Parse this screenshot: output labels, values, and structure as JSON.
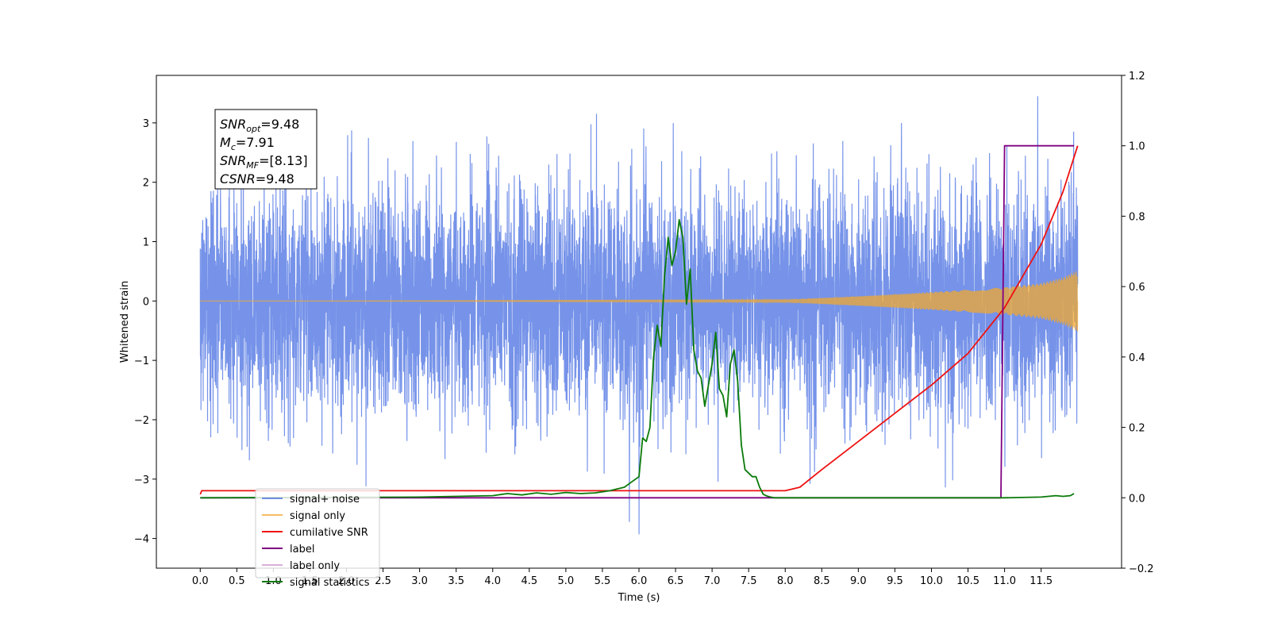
{
  "chart_data": {
    "type": "line",
    "xlabel": "Time (s)",
    "ylabel": "Whitened strain",
    "xlim": [
      -0.6,
      12.6
    ],
    "ylim": [
      -4.5,
      3.8
    ],
    "y2lim": [
      -0.2,
      1.2
    ],
    "xticks": [
      0.0,
      0.5,
      1.0,
      1.5,
      2.0,
      2.5,
      3.0,
      3.5,
      4.0,
      4.5,
      5.0,
      5.5,
      6.0,
      6.5,
      7.0,
      7.5,
      8.0,
      8.5,
      9.0,
      9.5,
      10.0,
      10.5,
      11.0,
      11.5
    ],
    "xtick_labels": [
      "0.0",
      "0.5",
      "1.0",
      "1.5",
      "2.0",
      "2.5",
      "3.0",
      "3.5",
      "4.0",
      "4.5",
      "5.0",
      "5.5",
      "6.0",
      "6.5",
      "7.0",
      "7.5",
      "8.0",
      "8.5",
      "9.0",
      "9.5",
      "10.0",
      "10.5",
      "11.0",
      "11.5"
    ],
    "yticks": [
      -4,
      -3,
      -2,
      -1,
      0,
      1,
      2,
      3
    ],
    "ytick_labels": [
      "−4",
      "−3",
      "−2",
      "−1",
      "0",
      "1",
      "2",
      "3"
    ],
    "y2ticks": [
      -0.2,
      0.0,
      0.2,
      0.4,
      0.6,
      0.8,
      1.0,
      1.2
    ],
    "y2tick_labels": [
      "−0.2",
      "0.0",
      "0.2",
      "0.4",
      "0.6",
      "0.8",
      "1.0",
      "1.2"
    ],
    "grid": false,
    "legend_position": "lower-left",
    "annotation": {
      "lines": [
        {
          "main": "SNR",
          "sub": "opt",
          "rest": "=9.48"
        },
        {
          "main": "M",
          "sub": "c",
          "rest": "=7.91"
        },
        {
          "main": "SNR",
          "sub": "MF",
          "rest": "=[8.13]"
        },
        {
          "main": "CSNR",
          "sub": "",
          "rest": "=9.48"
        }
      ]
    },
    "series": [
      {
        "name": "signal+ noise",
        "axis": "left",
        "color": "#4169e1",
        "kind": "noise",
        "x_range": [
          0.0,
          12.0
        ],
        "sigma": 1.0,
        "peak_max": 3.45,
        "peak_min": -4.1
      },
      {
        "name": "signal only",
        "axis": "left",
        "color": "#f0a830",
        "kind": "chirp",
        "x_range": [
          0.0,
          12.0
        ],
        "envelope_x": [
          0.0,
          8.0,
          9.0,
          10.0,
          10.5,
          11.0,
          11.5,
          11.8,
          12.0
        ],
        "envelope_y": [
          0.0,
          0.02,
          0.08,
          0.15,
          0.19,
          0.23,
          0.3,
          0.4,
          0.52
        ]
      },
      {
        "name": "cumilative SNR",
        "axis": "right",
        "color": "#ee1111",
        "x": [
          0.0,
          0.02,
          8.0,
          8.2,
          8.5,
          9.0,
          9.5,
          10.0,
          10.5,
          11.0,
          11.5,
          11.8,
          12.0
        ],
        "y": [
          0.01,
          0.02,
          0.02,
          0.03,
          0.08,
          0.16,
          0.24,
          0.32,
          0.41,
          0.54,
          0.72,
          0.87,
          1.0
        ]
      },
      {
        "name": "label",
        "axis": "right",
        "color": "#800080",
        "x": [
          0.0,
          10.95,
          11.0,
          11.95
        ],
        "y": [
          0.0,
          0.0,
          1.0,
          1.0
        ]
      },
      {
        "name": "label only",
        "axis": "right",
        "color": "#d8b0d8",
        "hidden_in_plot": true
      },
      {
        "name": "signal statistics",
        "axis": "right",
        "color": "#0a7a0a",
        "x": [
          0.0,
          3.0,
          3.5,
          4.0,
          4.2,
          4.4,
          4.6,
          4.8,
          5.0,
          5.2,
          5.4,
          5.6,
          5.8,
          5.9,
          6.0,
          6.05,
          6.1,
          6.15,
          6.2,
          6.25,
          6.3,
          6.35,
          6.4,
          6.45,
          6.5,
          6.55,
          6.6,
          6.65,
          6.7,
          6.75,
          6.8,
          6.85,
          6.9,
          6.95,
          7.0,
          7.05,
          7.1,
          7.15,
          7.2,
          7.25,
          7.3,
          7.35,
          7.4,
          7.45,
          7.5,
          7.55,
          7.6,
          7.65,
          7.7,
          7.75,
          7.8,
          7.85,
          7.9,
          7.95,
          8.0,
          8.05,
          8.1,
          8.15,
          8.2,
          8.3,
          8.5,
          9.0,
          10.0,
          11.0,
          11.5,
          11.7,
          11.8,
          11.9,
          11.95
        ],
        "y": [
          0.0,
          0.002,
          0.004,
          0.006,
          0.012,
          0.008,
          0.014,
          0.01,
          0.015,
          0.012,
          0.014,
          0.02,
          0.03,
          0.045,
          0.06,
          0.17,
          0.16,
          0.2,
          0.4,
          0.49,
          0.43,
          0.63,
          0.74,
          0.66,
          0.7,
          0.79,
          0.74,
          0.55,
          0.65,
          0.42,
          0.36,
          0.34,
          0.26,
          0.32,
          0.38,
          0.47,
          0.31,
          0.29,
          0.23,
          0.38,
          0.42,
          0.33,
          0.15,
          0.08,
          0.07,
          0.06,
          0.06,
          0.03,
          0.01,
          0.005,
          0.002,
          0.0,
          0.0,
          0.0,
          0.0,
          0.0,
          0.0,
          0.0,
          0.0,
          0.0,
          0.0,
          0.0,
          0.0,
          0.0,
          0.002,
          0.006,
          0.004,
          0.006,
          0.012
        ]
      }
    ]
  }
}
